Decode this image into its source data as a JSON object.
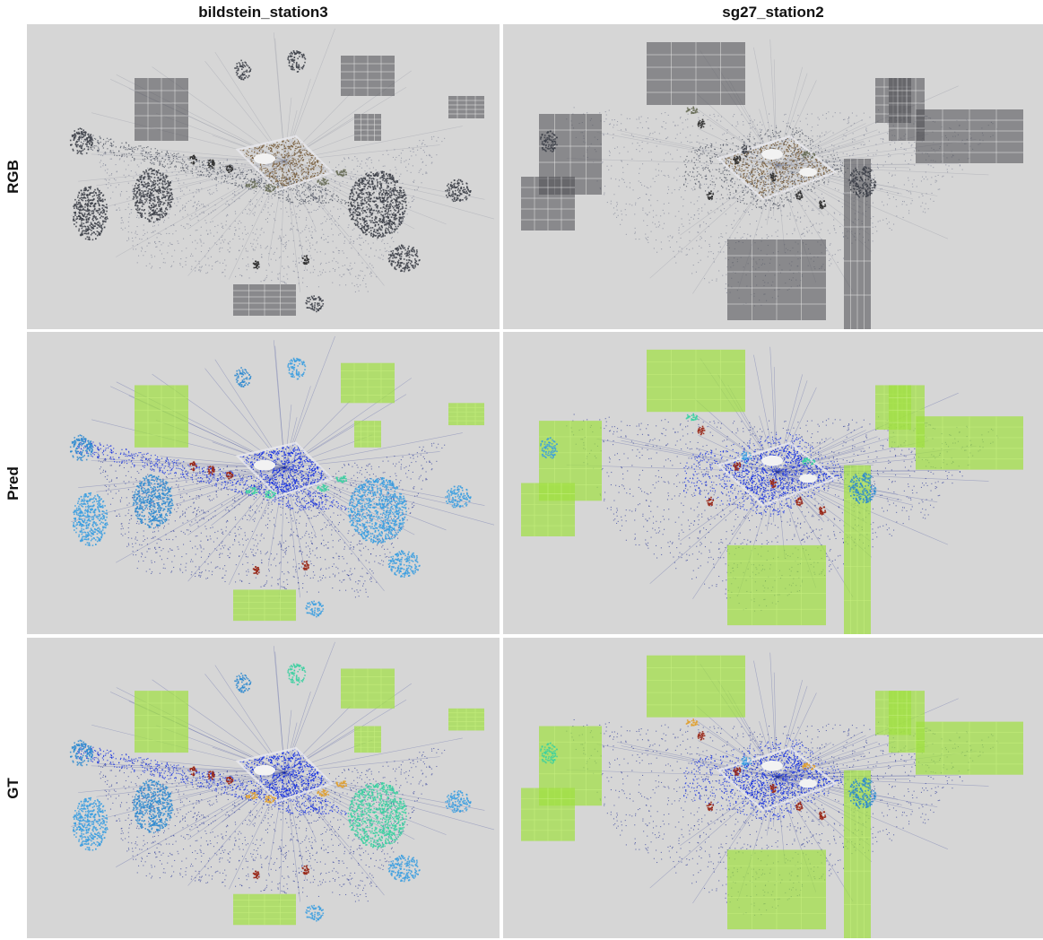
{
  "figure": {
    "columns": [
      {
        "title": "bildstein_station3"
      },
      {
        "title": "sg27_station2"
      }
    ],
    "rows": [
      {
        "label": "RGB"
      },
      {
        "label": "Pred"
      },
      {
        "label": "GT"
      }
    ]
  },
  "colors": {
    "background": "#d6d6d6",
    "ground": "#0a1a8c",
    "road_blue": "#1530e0",
    "building": "#9fe040",
    "vegetation": "#3a9ee0",
    "tree_high": "#2c88d0",
    "cars": "#9a2a1a",
    "hardscape": "#e0a030",
    "grass": "#3ad0a0",
    "gray_points": "#555a66"
  }
}
